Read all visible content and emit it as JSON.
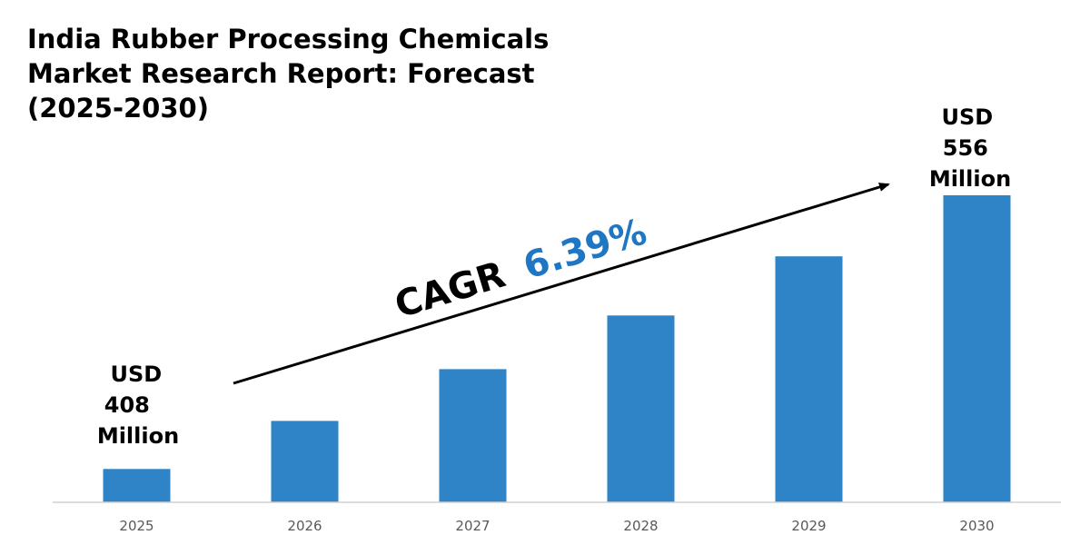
{
  "chart_data": {
    "type": "bar",
    "title_lines": [
      "India Rubber Processing Chemicals",
      "Market Research Report: Forecast",
      "(2025-2030)"
    ],
    "categories": [
      "2025",
      "2026",
      "2027",
      "2028",
      "2029",
      "2030"
    ],
    "values": [
      408,
      434,
      462,
      491,
      523,
      556
    ],
    "ylim": [
      390,
      575
    ],
    "grid": false,
    "legend": "none",
    "bar_color": "#2e84c6",
    "annotations": {
      "start": [
        "USD",
        "408",
        "Million"
      ],
      "end": [
        "USD",
        "556",
        "Million"
      ],
      "cagr_prefix": "CAGR",
      "cagr_value": "6.39%",
      "cagr_value_color": "#1f77c4"
    }
  }
}
